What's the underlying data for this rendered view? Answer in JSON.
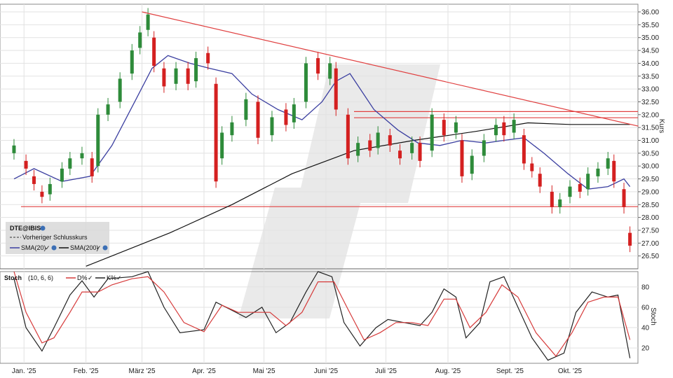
{
  "chart_data": [
    {
      "type": "candlestick",
      "title": "",
      "ylabel": "Kurs",
      "ylim": [
        26.0,
        36.3
      ],
      "yticks": [
        "36.00",
        "35.50",
        "35.00",
        "34.50",
        "34.00",
        "33.50",
        "33.00",
        "32.50",
        "32.00",
        "31.50",
        "31.00",
        "30.50",
        "30.00",
        "29.50",
        "29.00",
        "28.50",
        "28.00",
        "27.50",
        "27.00",
        "26.50"
      ],
      "x_months": [
        "Jan. '25",
        "Feb. '25",
        "März '25",
        "Apr. '25",
        "Mai '25",
        "Juni '25",
        "Juli '25",
        "Aug. '25",
        "Sept. '25",
        "Okt. '25"
      ],
      "legend": {
        "symbol": "DTE@IBIS",
        "prev_close": "Vorheriger Schlusskurs",
        "sma20": "SMA(20)",
        "sma200": "SMA(200)"
      },
      "colors": {
        "up": "#2e8b3a",
        "down": "#d42020",
        "sma20": "#3b3fa0",
        "sma200": "#111111",
        "trend": "#e04040"
      },
      "horizontal_levels": [
        28.42,
        31.88,
        32.12
      ],
      "trendline": [
        {
          "month": "2025-03-01",
          "y": 36.0
        },
        {
          "month": "2025-10-31",
          "y": 31.55
        }
      ],
      "close_series": [
        {
          "d": "2024-12-27",
          "o": 30.5,
          "c": 30.8
        },
        {
          "d": "2025-01-02",
          "o": 30.2,
          "c": 29.9
        },
        {
          "d": "2025-01-06",
          "o": 29.6,
          "c": 29.3
        },
        {
          "d": "2025-01-10",
          "o": 29.0,
          "c": 28.8
        },
        {
          "d": "2025-01-14",
          "o": 28.9,
          "c": 29.3
        },
        {
          "d": "2025-01-20",
          "o": 29.4,
          "c": 29.9
        },
        {
          "d": "2025-01-24",
          "o": 29.9,
          "c": 30.3
        },
        {
          "d": "2025-01-30",
          "o": 30.3,
          "c": 30.5
        },
        {
          "d": "2025-02-04",
          "o": 30.3,
          "c": 29.6
        },
        {
          "d": "2025-02-07",
          "o": 30.0,
          "c": 32.0
        },
        {
          "d": "2025-02-12",
          "o": 32.0,
          "c": 32.4
        },
        {
          "d": "2025-02-18",
          "o": 32.5,
          "c": 33.4
        },
        {
          "d": "2025-02-24",
          "o": 33.6,
          "c": 34.5
        },
        {
          "d": "2025-02-28",
          "o": 34.6,
          "c": 35.2
        },
        {
          "d": "2025-03-04",
          "o": 35.3,
          "c": 35.9
        },
        {
          "d": "2025-03-07",
          "o": 35.0,
          "c": 33.9
        },
        {
          "d": "2025-03-12",
          "o": 33.8,
          "c": 33.1
        },
        {
          "d": "2025-03-18",
          "o": 33.2,
          "c": 33.8
        },
        {
          "d": "2025-03-24",
          "o": 33.8,
          "c": 33.2
        },
        {
          "d": "2025-03-28",
          "o": 33.3,
          "c": 34.2
        },
        {
          "d": "2025-04-03",
          "o": 34.4,
          "c": 34.0
        },
        {
          "d": "2025-04-07",
          "o": 33.2,
          "c": 29.4
        },
        {
          "d": "2025-04-10",
          "o": 30.3,
          "c": 31.3
        },
        {
          "d": "2025-04-15",
          "o": 31.2,
          "c": 31.7
        },
        {
          "d": "2025-04-22",
          "o": 31.8,
          "c": 32.6
        },
        {
          "d": "2025-04-28",
          "o": 32.5,
          "c": 31.1
        },
        {
          "d": "2025-05-05",
          "o": 31.2,
          "c": 31.9
        },
        {
          "d": "2025-05-12",
          "o": 32.2,
          "c": 31.6
        },
        {
          "d": "2025-05-16",
          "o": 31.7,
          "c": 32.4
        },
        {
          "d": "2025-05-22",
          "o": 32.5,
          "c": 34.0
        },
        {
          "d": "2025-05-28",
          "o": 34.2,
          "c": 33.6
        },
        {
          "d": "2025-06-03",
          "o": 33.4,
          "c": 34.0
        },
        {
          "d": "2025-06-06",
          "o": 33.8,
          "c": 32.2
        },
        {
          "d": "2025-06-12",
          "o": 32.0,
          "c": 30.3
        },
        {
          "d": "2025-06-17",
          "o": 30.4,
          "c": 30.9
        },
        {
          "d": "2025-06-23",
          "o": 31.0,
          "c": 30.6
        },
        {
          "d": "2025-06-27",
          "o": 30.7,
          "c": 31.3
        },
        {
          "d": "2025-07-03",
          "o": 31.2,
          "c": 30.8
        },
        {
          "d": "2025-07-08",
          "o": 30.6,
          "c": 30.3
        },
        {
          "d": "2025-07-14",
          "o": 30.5,
          "c": 30.9
        },
        {
          "d": "2025-07-18",
          "o": 30.9,
          "c": 30.2
        },
        {
          "d": "2025-07-24",
          "o": 30.6,
          "c": 32.0
        },
        {
          "d": "2025-07-30",
          "o": 31.8,
          "c": 31.2
        },
        {
          "d": "2025-08-05",
          "o": 31.3,
          "c": 31.7
        },
        {
          "d": "2025-08-08",
          "o": 31.0,
          "c": 29.6
        },
        {
          "d": "2025-08-13",
          "o": 29.7,
          "c": 30.4
        },
        {
          "d": "2025-08-19",
          "o": 30.4,
          "c": 31.0
        },
        {
          "d": "2025-08-25",
          "o": 31.2,
          "c": 31.6
        },
        {
          "d": "2025-08-29",
          "o": 31.7,
          "c": 31.2
        },
        {
          "d": "2025-09-03",
          "o": 31.3,
          "c": 31.8
        },
        {
          "d": "2025-09-08",
          "o": 31.2,
          "c": 30.1
        },
        {
          "d": "2025-09-12",
          "o": 30.1,
          "c": 29.8
        },
        {
          "d": "2025-09-16",
          "o": 29.7,
          "c": 29.2
        },
        {
          "d": "2025-09-22",
          "o": 29.0,
          "c": 28.4
        },
        {
          "d": "2025-09-26",
          "o": 28.4,
          "c": 28.7
        },
        {
          "d": "2025-10-01",
          "o": 28.8,
          "c": 29.2
        },
        {
          "d": "2025-10-06",
          "o": 29.3,
          "c": 29.0
        },
        {
          "d": "2025-10-10",
          "o": 29.1,
          "c": 29.7
        },
        {
          "d": "2025-10-15",
          "o": 29.6,
          "c": 29.9
        },
        {
          "d": "2025-10-20",
          "o": 29.9,
          "c": 30.3
        },
        {
          "d": "2025-10-23",
          "o": 30.2,
          "c": 29.4
        },
        {
          "d": "2025-10-28",
          "o": 29.1,
          "c": 28.4
        },
        {
          "d": "2025-10-31",
          "o": 27.4,
          "c": 26.9
        }
      ],
      "sma20": [
        {
          "d": "2024-12-27",
          "y": 29.5
        },
        {
          "d": "2025-01-06",
          "y": 29.9
        },
        {
          "d": "2025-01-20",
          "y": 29.4
        },
        {
          "d": "2025-02-03",
          "y": 29.6
        },
        {
          "d": "2025-02-14",
          "y": 30.8
        },
        {
          "d": "2025-02-26",
          "y": 32.6
        },
        {
          "d": "2025-03-06",
          "y": 33.8
        },
        {
          "d": "2025-03-14",
          "y": 34.3
        },
        {
          "d": "2025-03-25",
          "y": 34.0
        },
        {
          "d": "2025-04-04",
          "y": 33.8
        },
        {
          "d": "2025-04-15",
          "y": 33.6
        },
        {
          "d": "2025-04-25",
          "y": 32.8
        },
        {
          "d": "2025-05-08",
          "y": 32.2
        },
        {
          "d": "2025-05-20",
          "y": 31.8
        },
        {
          "d": "2025-05-30",
          "y": 32.5
        },
        {
          "d": "2025-06-06",
          "y": 33.3
        },
        {
          "d": "2025-06-13",
          "y": 33.6
        },
        {
          "d": "2025-06-25",
          "y": 32.2
        },
        {
          "d": "2025-07-07",
          "y": 31.4
        },
        {
          "d": "2025-07-17",
          "y": 30.9
        },
        {
          "d": "2025-07-28",
          "y": 30.8
        },
        {
          "d": "2025-08-08",
          "y": 31.0
        },
        {
          "d": "2025-08-20",
          "y": 30.9
        },
        {
          "d": "2025-08-29",
          "y": 31.0
        },
        {
          "d": "2025-09-08",
          "y": 31.1
        },
        {
          "d": "2025-09-18",
          "y": 30.5
        },
        {
          "d": "2025-09-30",
          "y": 29.7
        },
        {
          "d": "2025-10-10",
          "y": 29.1
        },
        {
          "d": "2025-10-20",
          "y": 29.2
        },
        {
          "d": "2025-10-28",
          "y": 29.5
        },
        {
          "d": "2025-10-31",
          "y": 29.2
        }
      ],
      "sma200": [
        {
          "d": "2025-02-01",
          "y": 26.1
        },
        {
          "d": "2025-03-15",
          "y": 27.4
        },
        {
          "d": "2025-04-15",
          "y": 28.5
        },
        {
          "d": "2025-05-15",
          "y": 29.7
        },
        {
          "d": "2025-06-15",
          "y": 30.6
        },
        {
          "d": "2025-07-15",
          "y": 31.0
        },
        {
          "d": "2025-08-15",
          "y": 31.35
        },
        {
          "d": "2025-09-10",
          "y": 31.68
        },
        {
          "d": "2025-10-01",
          "y": 31.62
        },
        {
          "d": "2025-10-31",
          "y": 31.62
        }
      ]
    },
    {
      "type": "line",
      "title": "Stoch",
      "legend_label": "Stoch",
      "params": "(10, 6, 6)",
      "series_names": [
        "D%",
        "K%"
      ],
      "ylabel": "Stoch",
      "ylim": [
        5,
        95
      ],
      "yticks": [
        "80",
        "60",
        "40",
        "20"
      ],
      "series": [
        {
          "name": "K%",
          "color": "#222222",
          "points": [
            {
              "d": "2024-12-27",
              "y": 88
            },
            {
              "d": "2025-01-02",
              "y": 40
            },
            {
              "d": "2025-01-10",
              "y": 17
            },
            {
              "d": "2025-01-16",
              "y": 40
            },
            {
              "d": "2025-01-24",
              "y": 72
            },
            {
              "d": "2025-01-30",
              "y": 86
            },
            {
              "d": "2025-02-05",
              "y": 70
            },
            {
              "d": "2025-02-12",
              "y": 88
            },
            {
              "d": "2025-02-24",
              "y": 90
            },
            {
              "d": "2025-03-04",
              "y": 95
            },
            {
              "d": "2025-03-12",
              "y": 60
            },
            {
              "d": "2025-03-20",
              "y": 35
            },
            {
              "d": "2025-04-01",
              "y": 38
            },
            {
              "d": "2025-04-07",
              "y": 65
            },
            {
              "d": "2025-04-14",
              "y": 58
            },
            {
              "d": "2025-04-22",
              "y": 50
            },
            {
              "d": "2025-04-30",
              "y": 60
            },
            {
              "d": "2025-05-07",
              "y": 35
            },
            {
              "d": "2025-05-14",
              "y": 45
            },
            {
              "d": "2025-05-22",
              "y": 75
            },
            {
              "d": "2025-05-28",
              "y": 95
            },
            {
              "d": "2025-06-04",
              "y": 90
            },
            {
              "d": "2025-06-10",
              "y": 45
            },
            {
              "d": "2025-06-18",
              "y": 22
            },
            {
              "d": "2025-06-26",
              "y": 40
            },
            {
              "d": "2025-07-02",
              "y": 48
            },
            {
              "d": "2025-07-10",
              "y": 45
            },
            {
              "d": "2025-07-18",
              "y": 42
            },
            {
              "d": "2025-07-24",
              "y": 55
            },
            {
              "d": "2025-07-30",
              "y": 78
            },
            {
              "d": "2025-08-05",
              "y": 70
            },
            {
              "d": "2025-08-10",
              "y": 30
            },
            {
              "d": "2025-08-17",
              "y": 45
            },
            {
              "d": "2025-08-22",
              "y": 85
            },
            {
              "d": "2025-08-29",
              "y": 90
            },
            {
              "d": "2025-09-05",
              "y": 60
            },
            {
              "d": "2025-09-12",
              "y": 30
            },
            {
              "d": "2025-09-20",
              "y": 8
            },
            {
              "d": "2025-09-28",
              "y": 15
            },
            {
              "d": "2025-10-04",
              "y": 55
            },
            {
              "d": "2025-10-12",
              "y": 75
            },
            {
              "d": "2025-10-20",
              "y": 70
            },
            {
              "d": "2025-10-25",
              "y": 72
            },
            {
              "d": "2025-10-31",
              "y": 10
            }
          ]
        },
        {
          "name": "D%",
          "color": "#d63a3a",
          "points": [
            {
              "d": "2024-12-27",
              "y": 95
            },
            {
              "d": "2025-01-02",
              "y": 55
            },
            {
              "d": "2025-01-10",
              "y": 25
            },
            {
              "d": "2025-01-16",
              "y": 30
            },
            {
              "d": "2025-01-24",
              "y": 55
            },
            {
              "d": "2025-01-30",
              "y": 75
            },
            {
              "d": "2025-02-07",
              "y": 75
            },
            {
              "d": "2025-02-14",
              "y": 82
            },
            {
              "d": "2025-02-24",
              "y": 88
            },
            {
              "d": "2025-03-04",
              "y": 90
            },
            {
              "d": "2025-03-12",
              "y": 75
            },
            {
              "d": "2025-03-22",
              "y": 45
            },
            {
              "d": "2025-04-01",
              "y": 36
            },
            {
              "d": "2025-04-10",
              "y": 62
            },
            {
              "d": "2025-04-18",
              "y": 55
            },
            {
              "d": "2025-04-26",
              "y": 55
            },
            {
              "d": "2025-05-04",
              "y": 55
            },
            {
              "d": "2025-05-12",
              "y": 42
            },
            {
              "d": "2025-05-20",
              "y": 55
            },
            {
              "d": "2025-05-28",
              "y": 85
            },
            {
              "d": "2025-06-05",
              "y": 85
            },
            {
              "d": "2025-06-12",
              "y": 58
            },
            {
              "d": "2025-06-20",
              "y": 28
            },
            {
              "d": "2025-06-28",
              "y": 35
            },
            {
              "d": "2025-07-06",
              "y": 45
            },
            {
              "d": "2025-07-14",
              "y": 45
            },
            {
              "d": "2025-07-22",
              "y": 42
            },
            {
              "d": "2025-07-30",
              "y": 68
            },
            {
              "d": "2025-08-05",
              "y": 68
            },
            {
              "d": "2025-08-12",
              "y": 40
            },
            {
              "d": "2025-08-20",
              "y": 55
            },
            {
              "d": "2025-08-28",
              "y": 82
            },
            {
              "d": "2025-09-05",
              "y": 70
            },
            {
              "d": "2025-09-14",
              "y": 35
            },
            {
              "d": "2025-09-24",
              "y": 12
            },
            {
              "d": "2025-10-02",
              "y": 35
            },
            {
              "d": "2025-10-10",
              "y": 65
            },
            {
              "d": "2025-10-18",
              "y": 70
            },
            {
              "d": "2025-10-25",
              "y": 70
            },
            {
              "d": "2025-10-31",
              "y": 28
            }
          ]
        }
      ]
    }
  ]
}
